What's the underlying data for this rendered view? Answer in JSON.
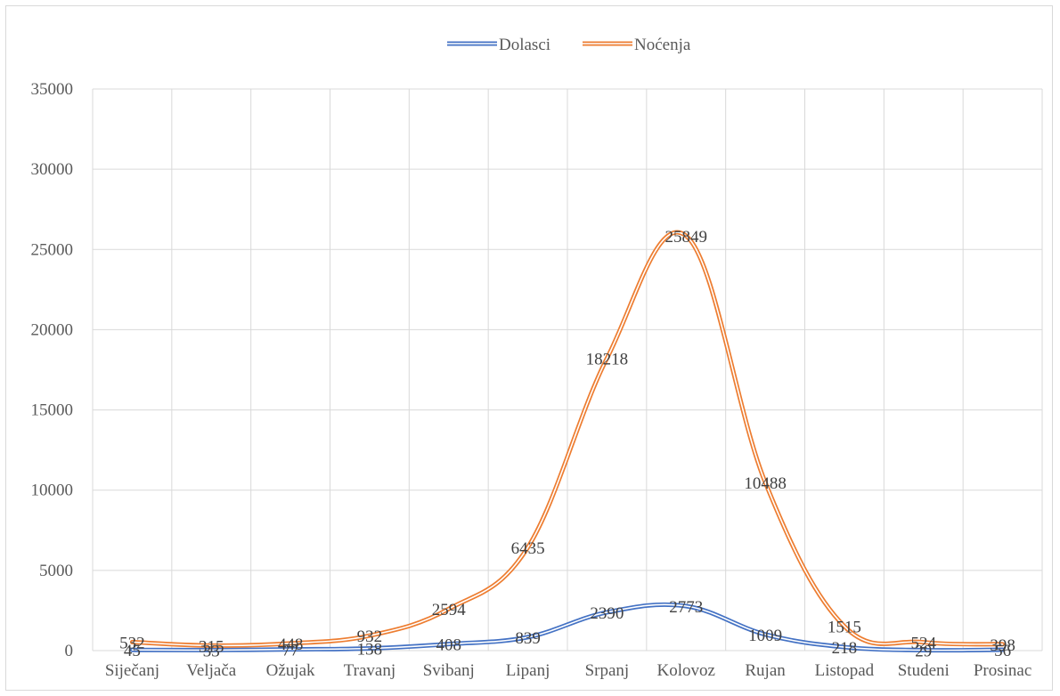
{
  "chart_data": {
    "type": "line",
    "categories": [
      "Siječanj",
      "Veljača",
      "Ožujak",
      "Travanj",
      "Svibanj",
      "Lipanj",
      "Srpanj",
      "Kolovoz",
      "Rujan",
      "Listopad",
      "Studeni",
      "Prosinac"
    ],
    "series": [
      {
        "name": "Dolasci",
        "color": "#4472c4",
        "values": [
          45,
          33,
          77,
          138,
          408,
          839,
          2390,
          2773,
          1009,
          218,
          29,
          56
        ]
      },
      {
        "name": "Noćenja",
        "color": "#ed7d31",
        "values": [
          532,
          315,
          448,
          932,
          2594,
          6435,
          18218,
          25849,
          10488,
          1515,
          524,
          398
        ]
      }
    ],
    "ylim": [
      0,
      35000
    ],
    "yticks": [
      "0",
      "5000",
      "10000",
      "15000",
      "20000",
      "25000",
      "30000",
      "35000"
    ],
    "grid": true,
    "legend_position": "top"
  }
}
